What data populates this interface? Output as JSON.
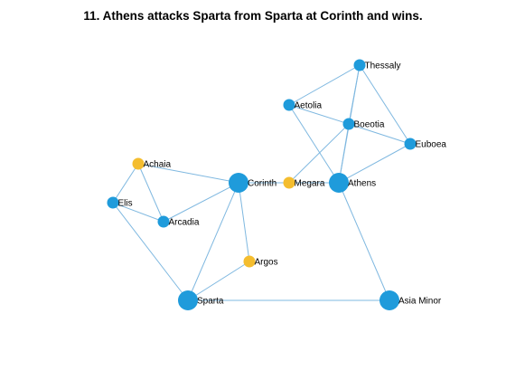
{
  "title": "11. Athens attacks Sparta from Sparta at Corinth and wins.",
  "colors": {
    "edge": "#7fb8e0",
    "node_default": "#1f9bdb",
    "node_highlight": "#f4bd2f",
    "background": "#ffffff"
  },
  "graph": {
    "nodes": [
      {
        "id": "thessaly",
        "label": "Thessaly",
        "state": "default",
        "importance": "small"
      },
      {
        "id": "aetolia",
        "label": "Aetolia",
        "state": "default",
        "importance": "small"
      },
      {
        "id": "boeotia",
        "label": "Boeotia",
        "state": "default",
        "importance": "small"
      },
      {
        "id": "euboea",
        "label": "Euboea",
        "state": "default",
        "importance": "small"
      },
      {
        "id": "achaia",
        "label": "Achaia",
        "state": "highlight",
        "importance": "small"
      },
      {
        "id": "corinth",
        "label": "Corinth",
        "state": "default",
        "importance": "large"
      },
      {
        "id": "megara",
        "label": "Megara",
        "state": "highlight",
        "importance": "small"
      },
      {
        "id": "athens",
        "label": "Athens",
        "state": "default",
        "importance": "large"
      },
      {
        "id": "elis",
        "label": "Elis",
        "state": "default",
        "importance": "small"
      },
      {
        "id": "arcadia",
        "label": "Arcadia",
        "state": "default",
        "importance": "small"
      },
      {
        "id": "argos",
        "label": "Argos",
        "state": "highlight",
        "importance": "small"
      },
      {
        "id": "sparta",
        "label": "Sparta",
        "state": "default",
        "importance": "large"
      },
      {
        "id": "asia_minor",
        "label": "Asia Minor",
        "state": "default",
        "importance": "large"
      }
    ],
    "edges": [
      [
        "thessaly",
        "aetolia"
      ],
      [
        "thessaly",
        "boeotia"
      ],
      [
        "thessaly",
        "euboea"
      ],
      [
        "thessaly",
        "athens"
      ],
      [
        "aetolia",
        "boeotia"
      ],
      [
        "aetolia",
        "athens"
      ],
      [
        "boeotia",
        "euboea"
      ],
      [
        "boeotia",
        "megara"
      ],
      [
        "boeotia",
        "athens"
      ],
      [
        "euboea",
        "athens"
      ],
      [
        "megara",
        "corinth"
      ],
      [
        "megara",
        "athens"
      ],
      [
        "athens",
        "asia_minor"
      ],
      [
        "corinth",
        "achaia"
      ],
      [
        "corinth",
        "arcadia"
      ],
      [
        "corinth",
        "argos"
      ],
      [
        "corinth",
        "sparta"
      ],
      [
        "achaia",
        "elis"
      ],
      [
        "achaia",
        "arcadia"
      ],
      [
        "elis",
        "arcadia"
      ],
      [
        "elis",
        "sparta"
      ],
      [
        "argos",
        "sparta"
      ],
      [
        "sparta",
        "asia_minor"
      ]
    ]
  }
}
